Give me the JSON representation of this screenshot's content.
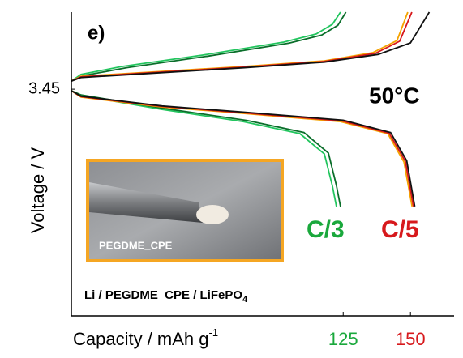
{
  "chart_data": {
    "type": "line",
    "title": "e)",
    "annotations": {
      "temperature": "50°C",
      "rate_a": "C/3",
      "rate_b": "C/5",
      "cell": "Li / PEGDME_CPE / LiFePO",
      "cell_sub": "4",
      "inset": "PEGDME_CPE"
    },
    "rate_a_color": "#1aa83c",
    "rate_b_color": "#d7191c",
    "x_label": "Capacity / mAh g",
    "x_label_sup": "-1",
    "y_label": "Voltage / V",
    "xlim": [
      24,
      165
    ],
    "ylim": [
      2.42,
      3.8
    ],
    "xticks": [
      125,
      150
    ],
    "xtick_colors": [
      "#1aa83c",
      "#d7191c"
    ],
    "yticks": [
      3.45
    ],
    "series": [
      {
        "color": "#22c55e",
        "x": [
          24,
          27.6,
          42.7,
          72.8,
          102.9,
          115.0,
          121.0,
          124.0
        ],
        "y": [
          3.487,
          3.517,
          3.553,
          3.605,
          3.664,
          3.701,
          3.745,
          3.8
        ]
      },
      {
        "color": "#0a6e2a",
        "x": [
          24,
          28.6,
          44.7,
          74.8,
          104.9,
          117.0,
          123.0,
          126.0
        ],
        "y": [
          3.487,
          3.512,
          3.548,
          3.6,
          3.659,
          3.696,
          3.74,
          3.8
        ]
      },
      {
        "color": "#f5a300",
        "x": [
          24,
          27.6,
          57.7,
          87.8,
          118.0,
          136.0,
          145.0,
          149.0
        ],
        "y": [
          3.487,
          3.509,
          3.531,
          3.553,
          3.579,
          3.616,
          3.671,
          3.8
        ]
      },
      {
        "color": "#d7191c",
        "x": [
          24,
          27.6,
          57.7,
          87.8,
          118.0,
          137.0,
          146.0,
          150.5
        ],
        "y": [
          3.487,
          3.506,
          3.528,
          3.55,
          3.576,
          3.613,
          3.668,
          3.8
        ]
      },
      {
        "color": "#111111",
        "x": [
          24,
          27.6,
          57.7,
          87.8,
          118.0,
          138.0,
          150.0,
          157.0
        ],
        "y": [
          3.487,
          3.503,
          3.525,
          3.547,
          3.573,
          3.608,
          3.66,
          3.8
        ]
      },
      {
        "color": "#22c55e",
        "x": [
          24,
          27.6,
          57.7,
          87.8,
          108.9,
          118.0,
          121.0,
          122.5
        ],
        "y": [
          3.443,
          3.421,
          3.358,
          3.303,
          3.248,
          3.156,
          3.009,
          2.917
        ]
      },
      {
        "color": "#0a6e2a",
        "x": [
          24,
          27.6,
          58.7,
          89.3,
          110.4,
          119.5,
          122.5,
          124.0
        ],
        "y": [
          3.443,
          3.424,
          3.362,
          3.308,
          3.253,
          3.16,
          3.012,
          2.917
        ]
      },
      {
        "color": "#f5a300",
        "x": [
          24,
          27.6,
          57.7,
          87.8,
          124.0,
          141.6,
          147.6,
          150.6
        ],
        "y": [
          3.443,
          3.414,
          3.369,
          3.34,
          3.303,
          3.248,
          3.119,
          2.917
        ]
      },
      {
        "color": "#d7191c",
        "x": [
          24,
          27.6,
          57.7,
          87.8,
          124.5,
          142.1,
          148.1,
          151.1
        ],
        "y": [
          3.443,
          3.416,
          3.372,
          3.343,
          3.306,
          3.25,
          3.122,
          2.917
        ]
      },
      {
        "color": "#111111",
        "x": [
          24,
          27.6,
          57.7,
          87.8,
          125.0,
          142.6,
          148.6,
          151.6
        ],
        "y": [
          3.443,
          3.418,
          3.374,
          3.346,
          3.309,
          3.253,
          3.125,
          2.917
        ]
      }
    ]
  }
}
